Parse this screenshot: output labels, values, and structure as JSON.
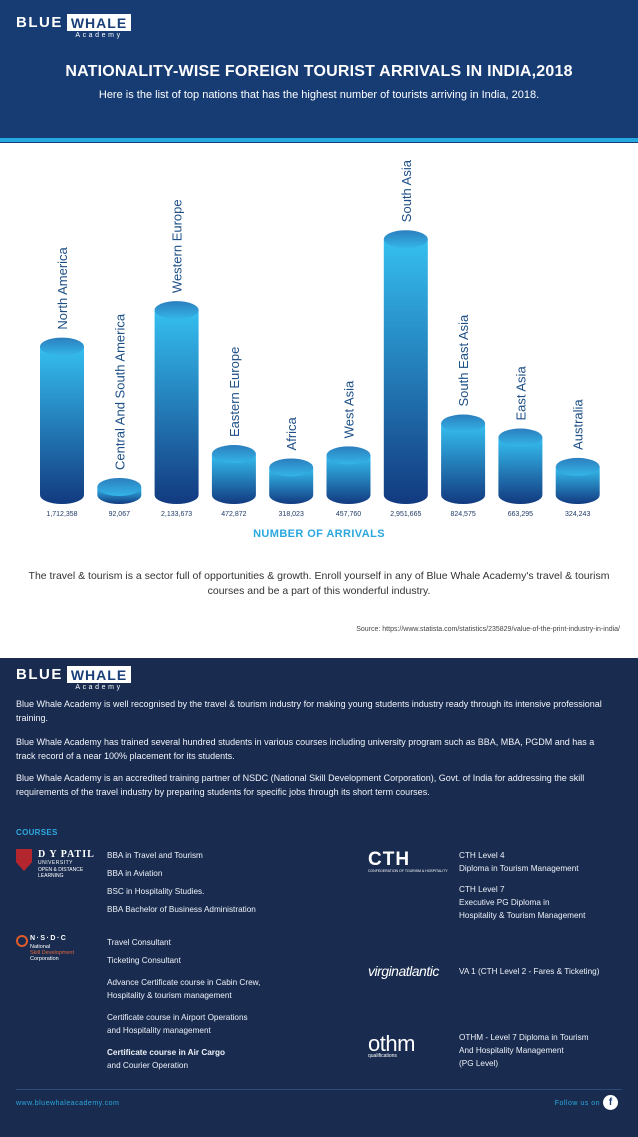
{
  "brand": {
    "word1": "BLUE",
    "word2": "WHALE",
    "sub": "Academy"
  },
  "header": {
    "title": "NATIONALITY-WISE FOREIGN TOURIST ARRIVALS IN INDIA,2018",
    "subtitle": "Here is the list of top nations that has the highest number of tourists arriving in India, 2018."
  },
  "chart_data": {
    "type": "bar",
    "title": "NATIONALITY-WISE FOREIGN TOURIST ARRIVALS IN INDIA,2018",
    "xlabel": "NUMBER OF ARRIVALS",
    "ylabel": "",
    "categories": [
      "North America",
      "Central And South America",
      "Western Europe",
      "Eastern Europe",
      "Africa",
      "West Asia",
      "South Asia",
      "South East Asia",
      "East Asia",
      "Australia"
    ],
    "values": [
      1712358,
      92067,
      2133673,
      472872,
      318023,
      457760,
      2951665,
      824575,
      663295,
      324243
    ],
    "value_labels": [
      "1,712,358",
      "92,067",
      "2,133,673",
      "472,872",
      "318,023",
      "457,760",
      "2,951,665",
      "824,575",
      "663,295",
      "324,243"
    ],
    "ylim": [
      0,
      3000000
    ],
    "grid": false,
    "legend": "none",
    "colors": {
      "top": "#35bff0",
      "bottom": "#123a80",
      "cap": "#2f8ec9",
      "label": "#1d4f86"
    }
  },
  "blurb": "The travel & tourism is a sector full of opportunities & growth. Enroll yourself in any of Blue Whale Academy's travel & tourism courses and be a part of this wonderful industry.",
  "source": "Source: https://www.statista.com/statistics/235829/value-of-the-print-industry-in-india/",
  "about": {
    "p1": "Blue Whale Academy is well recognised by the travel & tourism industry for making young students industry ready through its intensive professional training.",
    "p2": "Blue Whale Academy has trained several hundred students in various courses including university program such as BBA, MBA, PGDM and has a track record of a near 100% placement for its students.",
    "p3": "Blue Whale Academy is an accredited training partner of NSDC (National Skill Development Corporation), Govt. of India for addressing the skill requirements of the travel industry by preparing students for specific jobs through its short term courses."
  },
  "courses": {
    "heading": "COURSES",
    "dypatil": [
      "BBA in Travel and Tourism",
      "BBA in Aviation",
      "BSC in Hospitality Studies.",
      "BBA Bachelor of Business Administration"
    ],
    "nsdc": {
      "c1": "Travel Consultant",
      "c2": "Ticketing Consultant",
      "c3a": "Advance Certificate course in Cabin Crew,",
      "c3b": "Hospitality & tourism management",
      "c4a": "Certificate course in Airport Operations",
      "c4b": "and Hospitality management",
      "c5a": "Certificate course in Air Cargo",
      "c5b": "and Courier Operation"
    },
    "cth": {
      "a1": "CTH Level 4",
      "a2": "Diploma in Tourism Management",
      "b1": "CTH Level 7",
      "b2": "Executive PG Diploma in",
      "b3": "Hospitality & Tourism Management"
    },
    "virgin": "VA 1 (CTH Level 2 - Fares & Ticketing)",
    "othm": {
      "l1": "OTHM - Level 7 Diploma in Tourism",
      "l2": "And Hospitality Management",
      "l3": "(PG Level)"
    }
  },
  "logos": {
    "dypatil": {
      "l1": "D Y PATIL",
      "l2": "UNIVERSITY",
      "l3": "OPEN & DISTANCE",
      "l4": "LEARNING"
    },
    "nsdc": {
      "l1": "N·S·D·C",
      "l2": "National",
      "l3": "Skill Development",
      "l4": "Corporation"
    },
    "cth": {
      "l1": "CTH",
      "l2": "CONFEDERATION OF TOURISM & HOSPITALITY"
    },
    "virgin": "virginatlantic",
    "othm": {
      "l1": "othm",
      "l2": "qualifications"
    }
  },
  "footer": {
    "website": "www.bluewhaleacademy.com",
    "follow": "Follow us on",
    "fb_icon": "f"
  }
}
